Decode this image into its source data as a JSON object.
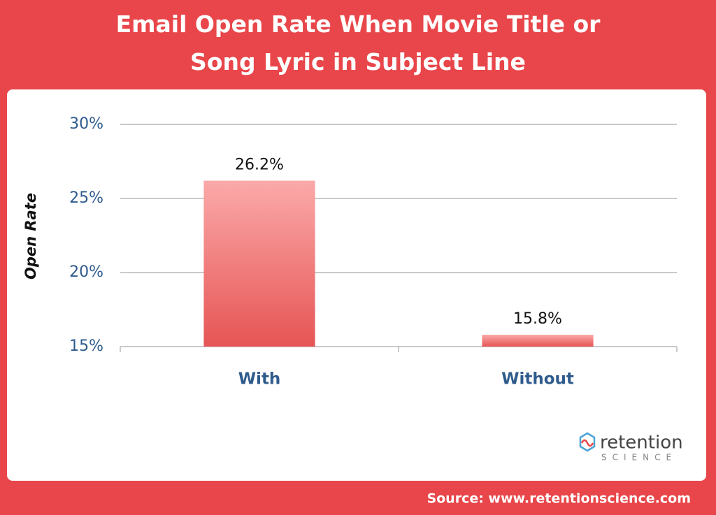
{
  "chart_data": {
    "type": "bar",
    "title": "Email Open Rate When Movie Title or Song Lyric in Subject Line",
    "y_label": "Open Rate",
    "categories": [
      "With",
      "Without"
    ],
    "values": [
      26.2,
      15.8
    ],
    "value_labels": [
      "26.2%",
      "15.8%"
    ],
    "color": "#e65555",
    "ylim": [
      15,
      30
    ],
    "yticks": [
      {
        "value": 15,
        "label": "15%"
      },
      {
        "value": 20,
        "label": "20%"
      },
      {
        "value": 25,
        "label": "25%"
      },
      {
        "value": 30,
        "label": "30%"
      }
    ],
    "grid": true,
    "logo": {
      "name": "retention",
      "tagline": "SCIENCE"
    },
    "source": "Source: www.retentionscience.com"
  }
}
